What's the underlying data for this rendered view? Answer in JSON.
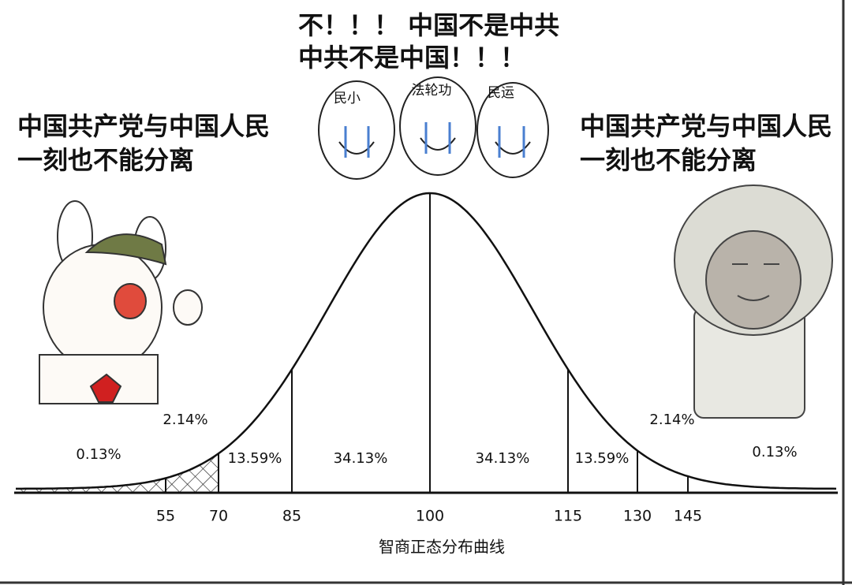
{
  "header": {
    "lines": [
      "不！！！ 中国不是中共",
      "中共不是中国！！！"
    ]
  },
  "crying_labels": [
    "民小",
    "法轮功",
    "民运"
  ],
  "left_caption": {
    "lines": [
      "中国共产党与中国人民",
      "一刻也不能分离"
    ]
  },
  "right_caption": {
    "lines": [
      "中国共产党与中国人民",
      "一刻也不能分离"
    ]
  },
  "curve": {
    "regions": [
      "0.13%",
      "2.14%",
      "13.59%",
      "34.13%",
      "34.13%",
      "13.59%",
      "2.14%",
      "0.13%"
    ],
    "ticks": [
      "55",
      "70",
      "85",
      "100",
      "115",
      "130",
      "145"
    ],
    "axis_title": "智商正态分布曲线"
  }
}
